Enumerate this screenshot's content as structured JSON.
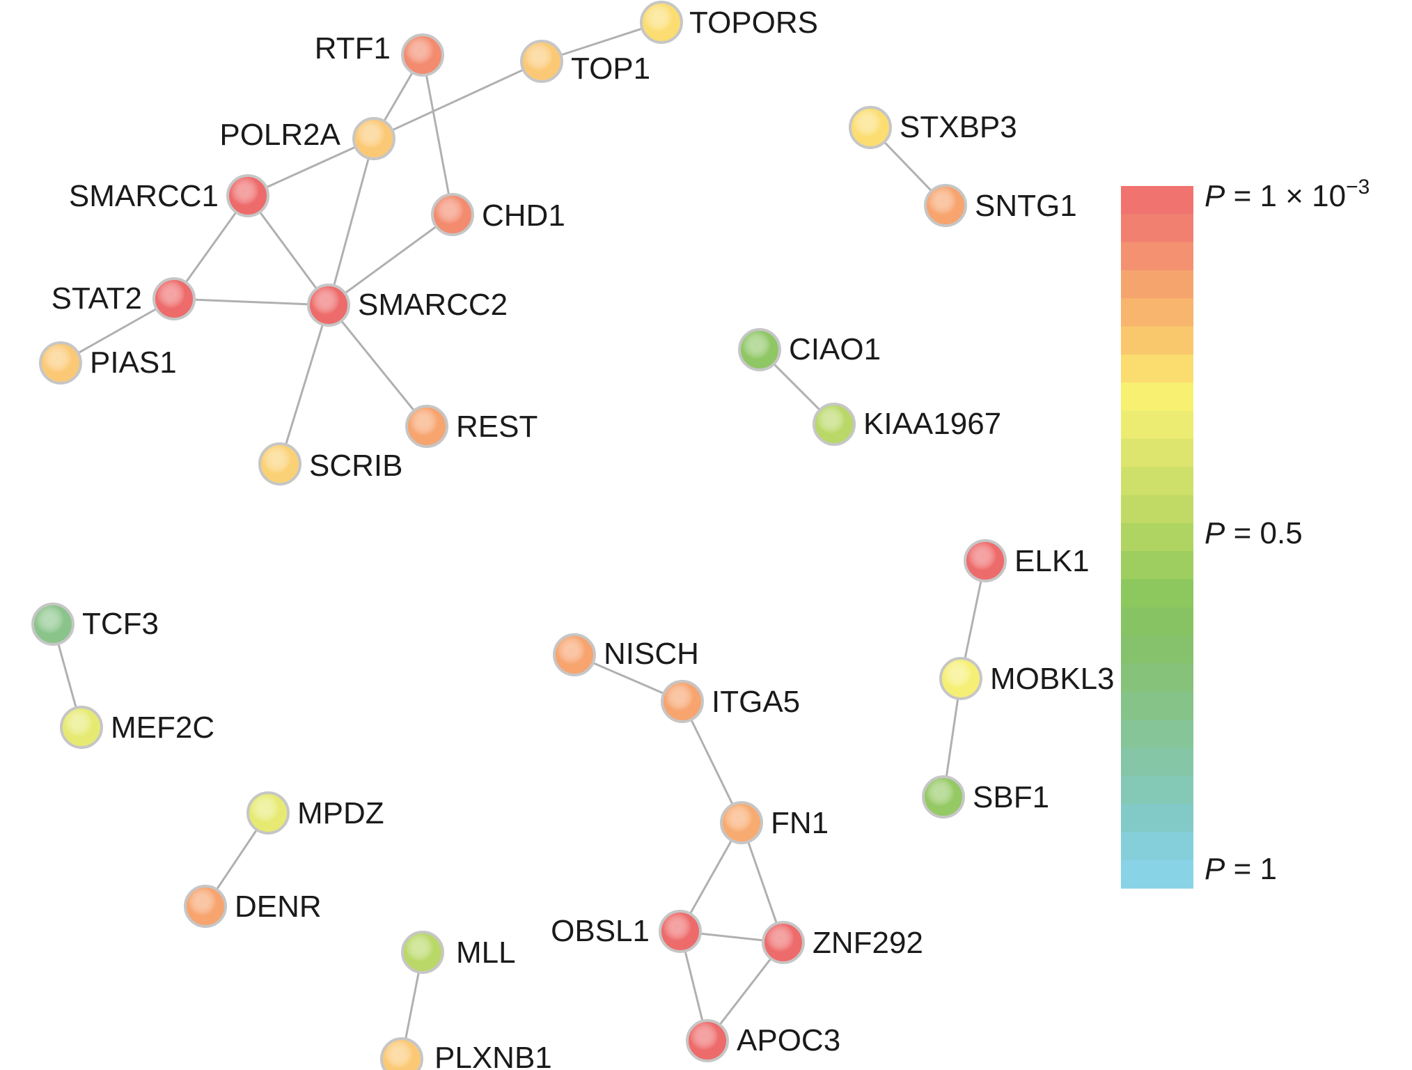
{
  "legend": {
    "top_label": {
      "var": "P",
      "rest": " = 1 × 10",
      "exp": "−3"
    },
    "mid_label": {
      "var": "P",
      "rest": " = 0.5"
    },
    "bottom_label": {
      "var": "P",
      "rest": " = 1"
    },
    "gradient_colors": [
      "#f0736f",
      "#f18070",
      "#f39170",
      "#f6a46e",
      "#f8b56d",
      "#fac86c",
      "#fadc6f",
      "#f7f071",
      "#ecec72",
      "#dde56e",
      "#cfe06a",
      "#c1da65",
      "#b0d461",
      "#9dce5f",
      "#8cc85d",
      "#87c362",
      "#86c16c",
      "#86c27a",
      "#85c388",
      "#85c597",
      "#84c6a6",
      "#84c8b6",
      "#82cac8",
      "#85cfdb",
      "#88d3e6"
    ]
  },
  "node_colors": {
    "red": "#ee6b6b",
    "red_orange": "#f38b6f",
    "orange": "#f7a46f",
    "light_orange": "#fab870",
    "orange_yellow": "#fbc976",
    "yellow": "#fbdd72",
    "pale_yellow": "#f6ef75",
    "yellow_green": "#e2ea72",
    "light_green": "#b9d867",
    "green": "#95c964",
    "teal_green": "#8ac48a",
    "outline": "#c6c6c6"
  },
  "nodes": [
    {
      "id": "RTF1",
      "label": "RTF1",
      "color": "#f38b6f"
    },
    {
      "id": "TOP1",
      "label": "TOP1",
      "color": "#fbc976"
    },
    {
      "id": "TOPORS",
      "label": "TOPORS",
      "color": "#fbdd72"
    },
    {
      "id": "POLR2A",
      "label": "POLR2A",
      "color": "#fbc976"
    },
    {
      "id": "SMARCC1",
      "label": "SMARCC1",
      "color": "#ee6b6b"
    },
    {
      "id": "CHD1",
      "label": "CHD1",
      "color": "#f38b6f"
    },
    {
      "id": "STAT2",
      "label": "STAT2",
      "color": "#ee6b6b"
    },
    {
      "id": "SMARCC2",
      "label": "SMARCC2",
      "color": "#ee6b6b"
    },
    {
      "id": "PIAS1",
      "label": "PIAS1",
      "color": "#fbc976"
    },
    {
      "id": "REST",
      "label": "REST",
      "color": "#f7a46f"
    },
    {
      "id": "SCRIB",
      "label": "SCRIB",
      "color": "#fbd175"
    },
    {
      "id": "STXBP3",
      "label": "STXBP3",
      "color": "#fbdd72"
    },
    {
      "id": "SNTG1",
      "label": "SNTG1",
      "color": "#f7a46f"
    },
    {
      "id": "CIAO1",
      "label": "CIAO1",
      "color": "#8fc765"
    },
    {
      "id": "KIAA1967",
      "label": "KIAA1967",
      "color": "#b9d867"
    },
    {
      "id": "ELK1",
      "label": "ELK1",
      "color": "#ee6b6b"
    },
    {
      "id": "MOBKL3",
      "label": "MOBKL3",
      "color": "#f6ef75"
    },
    {
      "id": "SBF1",
      "label": "SBF1",
      "color": "#95c964"
    },
    {
      "id": "TCF3",
      "label": "TCF3",
      "color": "#8ac48a"
    },
    {
      "id": "MEF2C",
      "label": "MEF2C",
      "color": "#e6ea72"
    },
    {
      "id": "NISCH",
      "label": "NISCH",
      "color": "#f7a46f"
    },
    {
      "id": "ITGA5",
      "label": "ITGA5",
      "color": "#f7a46f"
    },
    {
      "id": "FN1",
      "label": "FN1",
      "color": "#f8ab70"
    },
    {
      "id": "MPDZ",
      "label": "MPDZ",
      "color": "#e6ea72"
    },
    {
      "id": "DENR",
      "label": "DENR",
      "color": "#f7a46f"
    },
    {
      "id": "OBSL1",
      "label": "OBSL1",
      "color": "#ee6b6b"
    },
    {
      "id": "ZNF292",
      "label": "ZNF292",
      "color": "#ee6b6b"
    },
    {
      "id": "APOC3",
      "label": "APOC3",
      "color": "#ee6b6b"
    },
    {
      "id": "MLL",
      "label": "MLL",
      "color": "#b9d867"
    },
    {
      "id": "PLXNB1",
      "label": "PLXNB1",
      "color": "#fbc976"
    }
  ],
  "edges": [
    [
      "TOP1",
      "TOPORS"
    ],
    [
      "TOP1",
      "POLR2A"
    ],
    [
      "RTF1",
      "POLR2A"
    ],
    [
      "RTF1",
      "CHD1"
    ],
    [
      "POLR2A",
      "SMARCC1"
    ],
    [
      "POLR2A",
      "SMARCC2"
    ],
    [
      "SMARCC1",
      "STAT2"
    ],
    [
      "SMARCC1",
      "SMARCC2"
    ],
    [
      "CHD1",
      "SMARCC2"
    ],
    [
      "STAT2",
      "SMARCC2"
    ],
    [
      "STAT2",
      "PIAS1"
    ],
    [
      "SMARCC2",
      "REST"
    ],
    [
      "SMARCC2",
      "SCRIB"
    ],
    [
      "STXBP3",
      "SNTG1"
    ],
    [
      "CIAO1",
      "KIAA1967"
    ],
    [
      "ELK1",
      "MOBKL3"
    ],
    [
      "MOBKL3",
      "SBF1"
    ],
    [
      "TCF3",
      "MEF2C"
    ],
    [
      "NISCH",
      "ITGA5"
    ],
    [
      "ITGA5",
      "FN1"
    ],
    [
      "FN1",
      "OBSL1"
    ],
    [
      "FN1",
      "ZNF292"
    ],
    [
      "OBSL1",
      "ZNF292"
    ],
    [
      "OBSL1",
      "APOC3"
    ],
    [
      "ZNF292",
      "APOC3"
    ],
    [
      "MPDZ",
      "DENR"
    ],
    [
      "MLL",
      "PLXNB1"
    ]
  ]
}
